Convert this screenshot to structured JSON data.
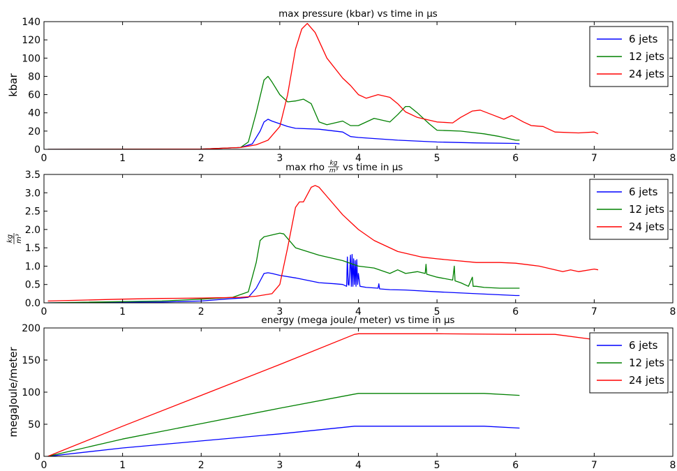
{
  "chart_data": [
    {
      "type": "line",
      "title": "max pressure (kbar) vs time in μs",
      "ylabel": "kbar",
      "xlim": [
        0,
        8
      ],
      "ylim": [
        0,
        140
      ],
      "xticks": [
        0,
        1,
        2,
        3,
        4,
        5,
        6,
        7,
        8
      ],
      "yticks": [
        0,
        20,
        40,
        60,
        80,
        100,
        120,
        140
      ],
      "legend": "top-right",
      "grid": false,
      "series": [
        {
          "name": "6 jets",
          "color": "#0000ff",
          "x": [
            0.05,
            2.0,
            2.5,
            2.65,
            2.75,
            2.8,
            2.85,
            2.9,
            3.0,
            3.1,
            3.2,
            3.5,
            3.8,
            3.88,
            3.9,
            4.0,
            4.5,
            5.0,
            5.5,
            6.0,
            6.05
          ],
          "y": [
            0,
            0.3,
            2,
            6,
            20,
            30,
            33,
            31,
            28,
            25,
            23,
            22,
            19,
            15,
            14,
            13,
            10,
            8,
            7,
            6.5,
            6
          ]
        },
        {
          "name": "12 jets",
          "color": "#008000",
          "x": [
            0.05,
            2.0,
            2.5,
            2.6,
            2.7,
            2.8,
            2.85,
            2.9,
            3.0,
            3.1,
            3.2,
            3.3,
            3.4,
            3.5,
            3.6,
            3.8,
            3.9,
            4.0,
            4.2,
            4.4,
            4.5,
            4.6,
            4.65,
            4.75,
            4.9,
            5.0,
            5.3,
            5.6,
            5.8,
            6.0,
            6.05
          ],
          "y": [
            0,
            0.3,
            2,
            8,
            40,
            76,
            80,
            74,
            60,
            52,
            53,
            55,
            50,
            30,
            27,
            31,
            26,
            26,
            34,
            30,
            38,
            47,
            47,
            40,
            28,
            21,
            20,
            17,
            14,
            10,
            10
          ]
        },
        {
          "name": "24 jets",
          "color": "#ff0000",
          "x": [
            0.05,
            2.0,
            2.5,
            2.7,
            2.85,
            3.0,
            3.1,
            3.2,
            3.28,
            3.35,
            3.45,
            3.6,
            3.8,
            3.9,
            4.0,
            4.1,
            4.25,
            4.4,
            4.5,
            4.6,
            4.75,
            5.0,
            5.2,
            5.3,
            5.45,
            5.55,
            5.7,
            5.85,
            5.95,
            6.1,
            6.2,
            6.35,
            6.5,
            6.8,
            7.0,
            7.05
          ],
          "y": [
            0,
            0.3,
            2,
            5,
            10,
            25,
            60,
            110,
            132,
            138,
            128,
            100,
            78,
            70,
            60,
            56,
            60,
            57,
            50,
            41,
            35,
            30,
            29,
            35,
            42,
            43,
            38,
            33,
            37,
            30,
            26,
            25,
            19,
            18,
            19,
            17
          ]
        }
      ]
    },
    {
      "type": "line",
      "title_pre": "max rho",
      "title_frac_num": "kg",
      "title_frac_den": "m³",
      "title_post": "vs time in μs",
      "ylabel_num": "kg",
      "ylabel_den": "m³",
      "xlim": [
        0,
        8
      ],
      "ylim": [
        0,
        3.5
      ],
      "xticks": [
        0,
        1,
        2,
        3,
        4,
        5,
        6,
        7,
        8
      ],
      "yticks": [
        "0.0",
        "0.5",
        "1.0",
        "1.5",
        "2.0",
        "2.5",
        "3.0",
        "3.5"
      ],
      "legend": "top-right",
      "grid": false,
      "series": [
        {
          "name": "6 jets",
          "color": "#0000ff",
          "x": [
            0.05,
            1.5,
            2.0,
            2.3,
            2.5,
            2.6,
            2.7,
            2.75,
            2.8,
            2.85,
            2.9,
            3.0,
            3.2,
            3.5,
            3.7,
            3.8,
            3.85,
            3.86,
            3.87,
            3.88,
            3.9,
            3.91,
            3.92,
            3.93,
            3.94,
            3.95,
            3.96,
            3.97,
            3.98,
            3.99,
            4.0,
            4.02,
            4.1,
            4.25,
            4.26,
            4.27,
            4.4,
            4.6,
            5.0,
            5.5,
            6.0,
            6.05
          ],
          "y": [
            0,
            0.02,
            0.05,
            0.1,
            0.13,
            0.15,
            0.4,
            0.6,
            0.8,
            0.82,
            0.8,
            0.75,
            0.68,
            0.55,
            0.52,
            0.5,
            0.45,
            1.25,
            0.5,
            0.48,
            1.3,
            0.45,
            1.32,
            0.45,
            1.2,
            0.5,
            1.15,
            0.45,
            1.18,
            0.5,
            0.8,
            0.45,
            0.42,
            0.4,
            0.52,
            0.38,
            0.36,
            0.35,
            0.3,
            0.25,
            0.2,
            0.2
          ]
        },
        {
          "name": "12 jets",
          "color": "#008000",
          "x": [
            0.05,
            1.5,
            2.0,
            2.4,
            2.6,
            2.7,
            2.75,
            2.8,
            2.9,
            3.0,
            3.05,
            3.2,
            3.5,
            3.8,
            4.0,
            4.2,
            4.4,
            4.5,
            4.6,
            4.75,
            4.85,
            4.86,
            4.87,
            5.0,
            5.2,
            5.22,
            5.23,
            5.3,
            5.4,
            5.45,
            5.46,
            5.5,
            5.6,
            5.8,
            6.05
          ],
          "y": [
            0,
            0.05,
            0.1,
            0.15,
            0.3,
            1.1,
            1.7,
            1.8,
            1.85,
            1.9,
            1.88,
            1.5,
            1.3,
            1.15,
            1.0,
            0.95,
            0.8,
            0.9,
            0.8,
            0.85,
            0.8,
            1.05,
            0.78,
            0.7,
            0.62,
            1.0,
            0.6,
            0.55,
            0.45,
            0.7,
            0.45,
            0.45,
            0.42,
            0.4,
            0.4
          ]
        },
        {
          "name": "24 jets",
          "color": "#ff0000",
          "x": [
            0.05,
            1.0,
            1.5,
            2.0,
            2.5,
            2.7,
            2.9,
            3.0,
            3.1,
            3.2,
            3.25,
            3.3,
            3.4,
            3.45,
            3.5,
            3.6,
            3.8,
            4.0,
            4.2,
            4.5,
            4.8,
            5.0,
            5.5,
            5.8,
            6.0,
            6.3,
            6.6,
            6.7,
            6.8,
            7.0,
            7.05
          ],
          "y": [
            0.05,
            0.1,
            0.12,
            0.13,
            0.15,
            0.18,
            0.25,
            0.5,
            1.5,
            2.6,
            2.75,
            2.75,
            3.15,
            3.2,
            3.15,
            2.9,
            2.4,
            2.0,
            1.7,
            1.4,
            1.25,
            1.2,
            1.1,
            1.1,
            1.08,
            1.0,
            0.85,
            0.9,
            0.85,
            0.92,
            0.9
          ]
        }
      ]
    },
    {
      "type": "line",
      "title": "energy (mega joule/ meter) vs time in μs",
      "ylabel": "megaJoule/meter",
      "xlim": [
        0,
        8
      ],
      "ylim": [
        0,
        200
      ],
      "xticks": [
        0,
        1,
        2,
        3,
        4,
        5,
        6,
        7,
        8
      ],
      "yticks": [
        0,
        50,
        100,
        150,
        200
      ],
      "legend": "top-right",
      "grid": false,
      "series": [
        {
          "name": "6 jets",
          "color": "#0000ff",
          "x": [
            0.05,
            1.0,
            2.0,
            3.0,
            3.95,
            4.0,
            5.0,
            5.6,
            6.05
          ],
          "y": [
            0,
            13,
            24,
            35,
            47,
            47,
            47,
            47,
            44
          ]
        },
        {
          "name": "12 jets",
          "color": "#008000",
          "x": [
            0.05,
            1.0,
            2.0,
            3.0,
            3.95,
            4.0,
            5.0,
            5.6,
            6.05
          ],
          "y": [
            0,
            27,
            51,
            75,
            97,
            98,
            98,
            98,
            95
          ]
        },
        {
          "name": "24 jets",
          "color": "#ff0000",
          "x": [
            0.05,
            1.0,
            2.0,
            3.0,
            3.95,
            4.0,
            5.0,
            6.0,
            6.5,
            7.0,
            7.4
          ],
          "y": [
            0,
            47,
            95,
            143,
            190,
            191,
            191,
            190,
            190,
            182,
            170
          ]
        }
      ]
    }
  ]
}
